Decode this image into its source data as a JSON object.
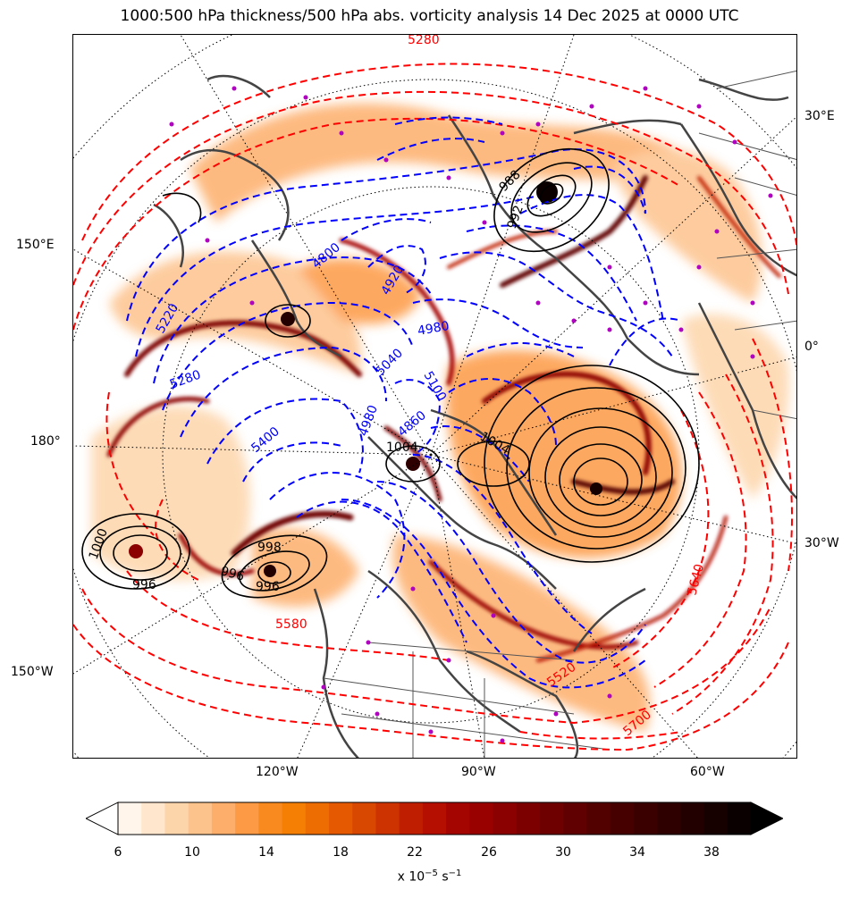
{
  "title": "1000:500 hPa thickness/500 hPa abs. vorticity analysis 14 Dec 2025 at 0000 UTC",
  "lon_labels": {
    "e30": "30°E",
    "e150": "150°E",
    "zero": "0°",
    "d180": "180°",
    "w30": "30°W",
    "w150": "150°W",
    "w120": "120°W",
    "w90": "90°W",
    "w60": "60°W"
  },
  "thickness_labels": {
    "blue": [
      "4800",
      "5220",
      "5280",
      "4980",
      "5040",
      "5100",
      "4860",
      "5400",
      "4920",
      "4980"
    ],
    "red": [
      "5580",
      "5640",
      "5700",
      "5520",
      "5280"
    ]
  },
  "pressure_labels": [
    "1000",
    "996",
    "998",
    "996",
    "996",
    "1004",
    "992",
    "988",
    "1000"
  ],
  "colorbar": {
    "tick_labels": [
      "6",
      "10",
      "14",
      "18",
      "22",
      "26",
      "30",
      "34",
      "38"
    ],
    "units_prefix": "x 10",
    "units_exp": "−5",
    "units_suffix": " s",
    "units_exp2": "−1",
    "colors": [
      "#fff5eb",
      "#ffe6cc",
      "#fdd5ab",
      "#fdc38d",
      "#fdae6b",
      "#fd9a45",
      "#f88a1f",
      "#f57e05",
      "#ee6d02",
      "#e55901",
      "#d94801",
      "#cc3300",
      "#c01e00",
      "#b40f00",
      "#a50500",
      "#990000",
      "#8b0000",
      "#7d0000",
      "#6e0000",
      "#600000",
      "#520000",
      "#460000",
      "#3a0000",
      "#2e0000",
      "#220000",
      "#160000",
      "#0a0000"
    ]
  },
  "colors": {
    "thickness_cold": "#0000ff",
    "thickness_warm": "#ff0000",
    "isobar": "#000000",
    "coast": "#444444",
    "marker": "#b000c0"
  }
}
